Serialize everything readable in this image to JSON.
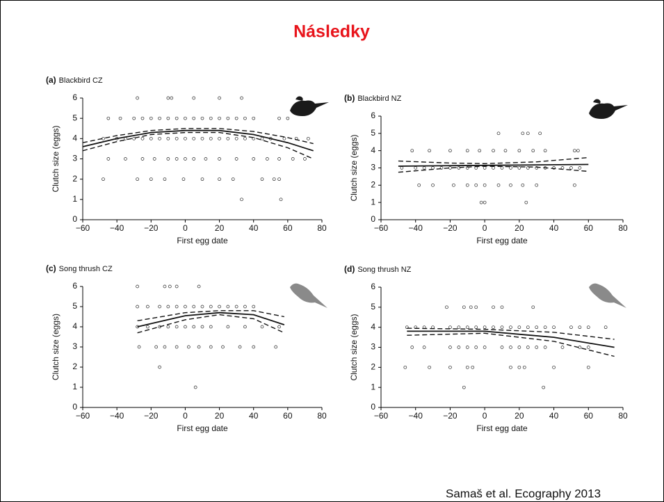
{
  "header": {
    "title": "Následky"
  },
  "citation": "Samaš et al. Ecography 2013",
  "chart_data": [
    {
      "type": "scatter",
      "panel": "(a)",
      "title": "Blackbird CZ",
      "x_label": "First egg date",
      "y_label": "Clutch size (eggs)",
      "xlim": [
        -60,
        80
      ],
      "xticks": [
        {
          "value": -60,
          "label": "−60"
        },
        {
          "value": -40,
          "label": "−40"
        },
        {
          "value": -20,
          "label": "−20"
        },
        0,
        20,
        40,
        60,
        80
      ],
      "ylim": [
        0,
        6
      ],
      "yticks": [
        0,
        1,
        2,
        3,
        4,
        5,
        6
      ],
      "series": [
        {
          "style": "points",
          "color": "#222222",
          "x": [
            -28,
            -10,
            -8,
            5,
            20,
            33,
            -45,
            -38,
            -30,
            -25,
            -20,
            -15,
            -10,
            -5,
            0,
            5,
            10,
            15,
            20,
            25,
            30,
            35,
            40,
            55,
            60,
            -48,
            -40,
            -35,
            -30,
            -25,
            -20,
            -15,
            -10,
            -5,
            0,
            5,
            10,
            15,
            20,
            25,
            30,
            35,
            40,
            45,
            50,
            58,
            65,
            72,
            -45,
            -35,
            -25,
            -18,
            -10,
            -5,
            0,
            5,
            12,
            20,
            30,
            40,
            48,
            55,
            63,
            70,
            -48,
            -28,
            -20,
            -12,
            -1,
            10,
            20,
            28,
            45,
            52,
            55,
            33,
            56
          ],
          "y": [
            6,
            6,
            6,
            6,
            6,
            6,
            5,
            5,
            5,
            5,
            5,
            5,
            5,
            5,
            5,
            5,
            5,
            5,
            5,
            5,
            5,
            5,
            5,
            5,
            5,
            4,
            4,
            4,
            4,
            4,
            4,
            4,
            4,
            4,
            4,
            4,
            4,
            4,
            4,
            4,
            4,
            4,
            4,
            4,
            4,
            4,
            4,
            4,
            3,
            3,
            3,
            3,
            3,
            3,
            3,
            3,
            3,
            3,
            3,
            3,
            3,
            3,
            3,
            3,
            2,
            2,
            2,
            2,
            2,
            2,
            2,
            2,
            2,
            2,
            2,
            1,
            1
          ]
        },
        {
          "style": "solid",
          "color": "#111111",
          "x": [
            -60,
            -40,
            -20,
            0,
            20,
            40,
            60,
            75
          ],
          "y": [
            3.6,
            4.0,
            4.3,
            4.4,
            4.4,
            4.2,
            3.8,
            3.4
          ]
        },
        {
          "style": "dashed",
          "color": "#111111",
          "x": [
            -60,
            -40,
            -20,
            0,
            20,
            40,
            60,
            75
          ],
          "y": [
            3.8,
            4.15,
            4.4,
            4.5,
            4.5,
            4.35,
            4.05,
            3.75
          ]
        },
        {
          "style": "dashed",
          "color": "#111111",
          "x": [
            -60,
            -40,
            -20,
            0,
            20,
            40,
            60,
            75
          ],
          "y": [
            3.4,
            3.85,
            4.2,
            4.3,
            4.3,
            4.05,
            3.55,
            3.0
          ]
        }
      ]
    },
    {
      "type": "scatter",
      "panel": "(b)",
      "title": "Blackbird NZ",
      "x_label": "First egg date",
      "y_label": "Clutch size (eggs)",
      "xlim": [
        -60,
        80
      ],
      "xticks": [
        {
          "value": -60,
          "label": "−60"
        },
        {
          "value": -40,
          "label": "−40"
        },
        {
          "value": -20,
          "label": "−20"
        },
        0,
        20,
        40,
        60,
        80
      ],
      "ylim": [
        0,
        6
      ],
      "yticks": [
        0,
        1,
        2,
        3,
        4,
        5,
        6
      ],
      "series": [
        {
          "style": "points",
          "color": "#222222",
          "x": [
            8,
            22,
            25,
            32,
            -42,
            -32,
            -20,
            -10,
            -3,
            5,
            12,
            20,
            28,
            35,
            52,
            54,
            -48,
            -40,
            -35,
            -30,
            -25,
            -20,
            -15,
            -10,
            -5,
            0,
            5,
            10,
            15,
            20,
            25,
            30,
            35,
            40,
            45,
            50,
            55,
            -38,
            -30,
            -18,
            -10,
            -5,
            0,
            8,
            15,
            22,
            30,
            52,
            -2,
            0,
            24
          ],
          "y": [
            5,
            5,
            5,
            5,
            4,
            4,
            4,
            4,
            4,
            4,
            4,
            4,
            4,
            4,
            4,
            4,
            3,
            3,
            3,
            3,
            3,
            3,
            3,
            3,
            3,
            3,
            3,
            3,
            3,
            3,
            3,
            3,
            3,
            3,
            3,
            3,
            3,
            2,
            2,
            2,
            2,
            2,
            2,
            2,
            2,
            2,
            2,
            2,
            1,
            1,
            1
          ]
        },
        {
          "style": "solid",
          "color": "#111111",
          "x": [
            -50,
            0,
            60
          ],
          "y": [
            3.1,
            3.15,
            3.2
          ]
        },
        {
          "style": "dashed",
          "color": "#111111",
          "x": [
            -50,
            -20,
            0,
            30,
            60
          ],
          "y": [
            3.4,
            3.28,
            3.25,
            3.35,
            3.6
          ]
        },
        {
          "style": "dashed",
          "color": "#111111",
          "x": [
            -50,
            -20,
            0,
            30,
            60
          ],
          "y": [
            2.75,
            3.0,
            3.1,
            3.05,
            2.8
          ]
        }
      ]
    },
    {
      "type": "scatter",
      "panel": "(c)",
      "title": "Song thrush CZ",
      "x_label": "First egg date",
      "y_label": "Clutch size (eggs)",
      "xlim": [
        -60,
        80
      ],
      "xticks": [
        {
          "value": -60,
          "label": "−60"
        },
        {
          "value": -40,
          "label": "−40"
        },
        {
          "value": -20,
          "label": "−20"
        },
        0,
        20,
        40,
        60,
        80
      ],
      "ylim": [
        0,
        6
      ],
      "yticks": [
        0,
        1,
        2,
        3,
        4,
        5,
        6
      ],
      "series": [
        {
          "style": "points",
          "color": "#222222",
          "x": [
            -28,
            -12,
            -9,
            -5,
            8,
            -28,
            -22,
            -15,
            -10,
            -5,
            0,
            5,
            10,
            15,
            20,
            25,
            30,
            35,
            40,
            -28,
            -22,
            -15,
            -10,
            -5,
            0,
            5,
            10,
            15,
            25,
            35,
            45,
            55,
            -27,
            -17,
            -12,
            -5,
            2,
            8,
            15,
            22,
            32,
            40,
            53,
            -15,
            6
          ],
          "y": [
            6,
            6,
            6,
            6,
            6,
            5,
            5,
            5,
            5,
            5,
            5,
            5,
            5,
            5,
            5,
            5,
            5,
            5,
            5,
            4,
            4,
            4,
            4,
            4,
            4,
            4,
            4,
            4,
            4,
            4,
            4,
            4,
            3,
            3,
            3,
            3,
            3,
            3,
            3,
            3,
            3,
            3,
            3,
            2,
            1
          ]
        },
        {
          "style": "solid",
          "color": "#111111",
          "x": [
            -28,
            0,
            20,
            40,
            58
          ],
          "y": [
            4.0,
            4.55,
            4.7,
            4.6,
            4.1
          ]
        },
        {
          "style": "dashed",
          "color": "#111111",
          "x": [
            -28,
            0,
            20,
            40,
            58
          ],
          "y": [
            4.3,
            4.7,
            4.8,
            4.8,
            4.5
          ]
        },
        {
          "style": "dashed",
          "color": "#111111",
          "x": [
            -28,
            0,
            20,
            40,
            58
          ],
          "y": [
            3.7,
            4.35,
            4.6,
            4.4,
            3.7
          ]
        }
      ]
    },
    {
      "type": "scatter",
      "panel": "(d)",
      "title": "Song thrush NZ",
      "x_label": "First egg date",
      "y_label": "Clutch size (eggs)",
      "xlim": [
        -60,
        80
      ],
      "xticks": [
        {
          "value": -60,
          "label": "−60"
        },
        {
          "value": -40,
          "label": "−40"
        },
        {
          "value": -20,
          "label": "−20"
        },
        0,
        20,
        40,
        60,
        80
      ],
      "ylim": [
        0,
        6
      ],
      "yticks": [
        0,
        1,
        2,
        3,
        4,
        5,
        6
      ],
      "series": [
        {
          "style": "points",
          "color": "#222222",
          "x": [
            -22,
            -12,
            -8,
            -5,
            5,
            10,
            28,
            -45,
            -40,
            -35,
            -30,
            -20,
            -15,
            -10,
            -5,
            0,
            5,
            10,
            15,
            20,
            25,
            30,
            35,
            40,
            50,
            55,
            60,
            70,
            -42,
            -35,
            -20,
            -15,
            -10,
            -5,
            0,
            10,
            15,
            20,
            25,
            30,
            35,
            45,
            55,
            60,
            -46,
            -32,
            -20,
            -10,
            -7,
            15,
            20,
            23,
            40,
            60,
            -12,
            34
          ],
          "y": [
            5,
            5,
            5,
            5,
            5,
            5,
            5,
            4,
            4,
            4,
            4,
            4,
            4,
            4,
            4,
            4,
            4,
            4,
            4,
            4,
            4,
            4,
            4,
            4,
            4,
            4,
            4,
            4,
            3,
            3,
            3,
            3,
            3,
            3,
            3,
            3,
            3,
            3,
            3,
            3,
            3,
            3,
            3,
            3,
            2,
            2,
            2,
            2,
            2,
            2,
            2,
            2,
            2,
            2,
            1,
            1
          ]
        },
        {
          "style": "solid",
          "color": "#111111",
          "x": [
            -45,
            0,
            40,
            75
          ],
          "y": [
            3.8,
            3.8,
            3.5,
            3.0
          ]
        },
        {
          "style": "dashed",
          "color": "#111111",
          "x": [
            -45,
            0,
            40,
            75
          ],
          "y": [
            3.95,
            3.9,
            3.75,
            3.4
          ]
        },
        {
          "style": "dashed",
          "color": "#111111",
          "x": [
            -45,
            0,
            40,
            75
          ],
          "y": [
            3.6,
            3.7,
            3.3,
            2.55
          ]
        }
      ]
    }
  ]
}
